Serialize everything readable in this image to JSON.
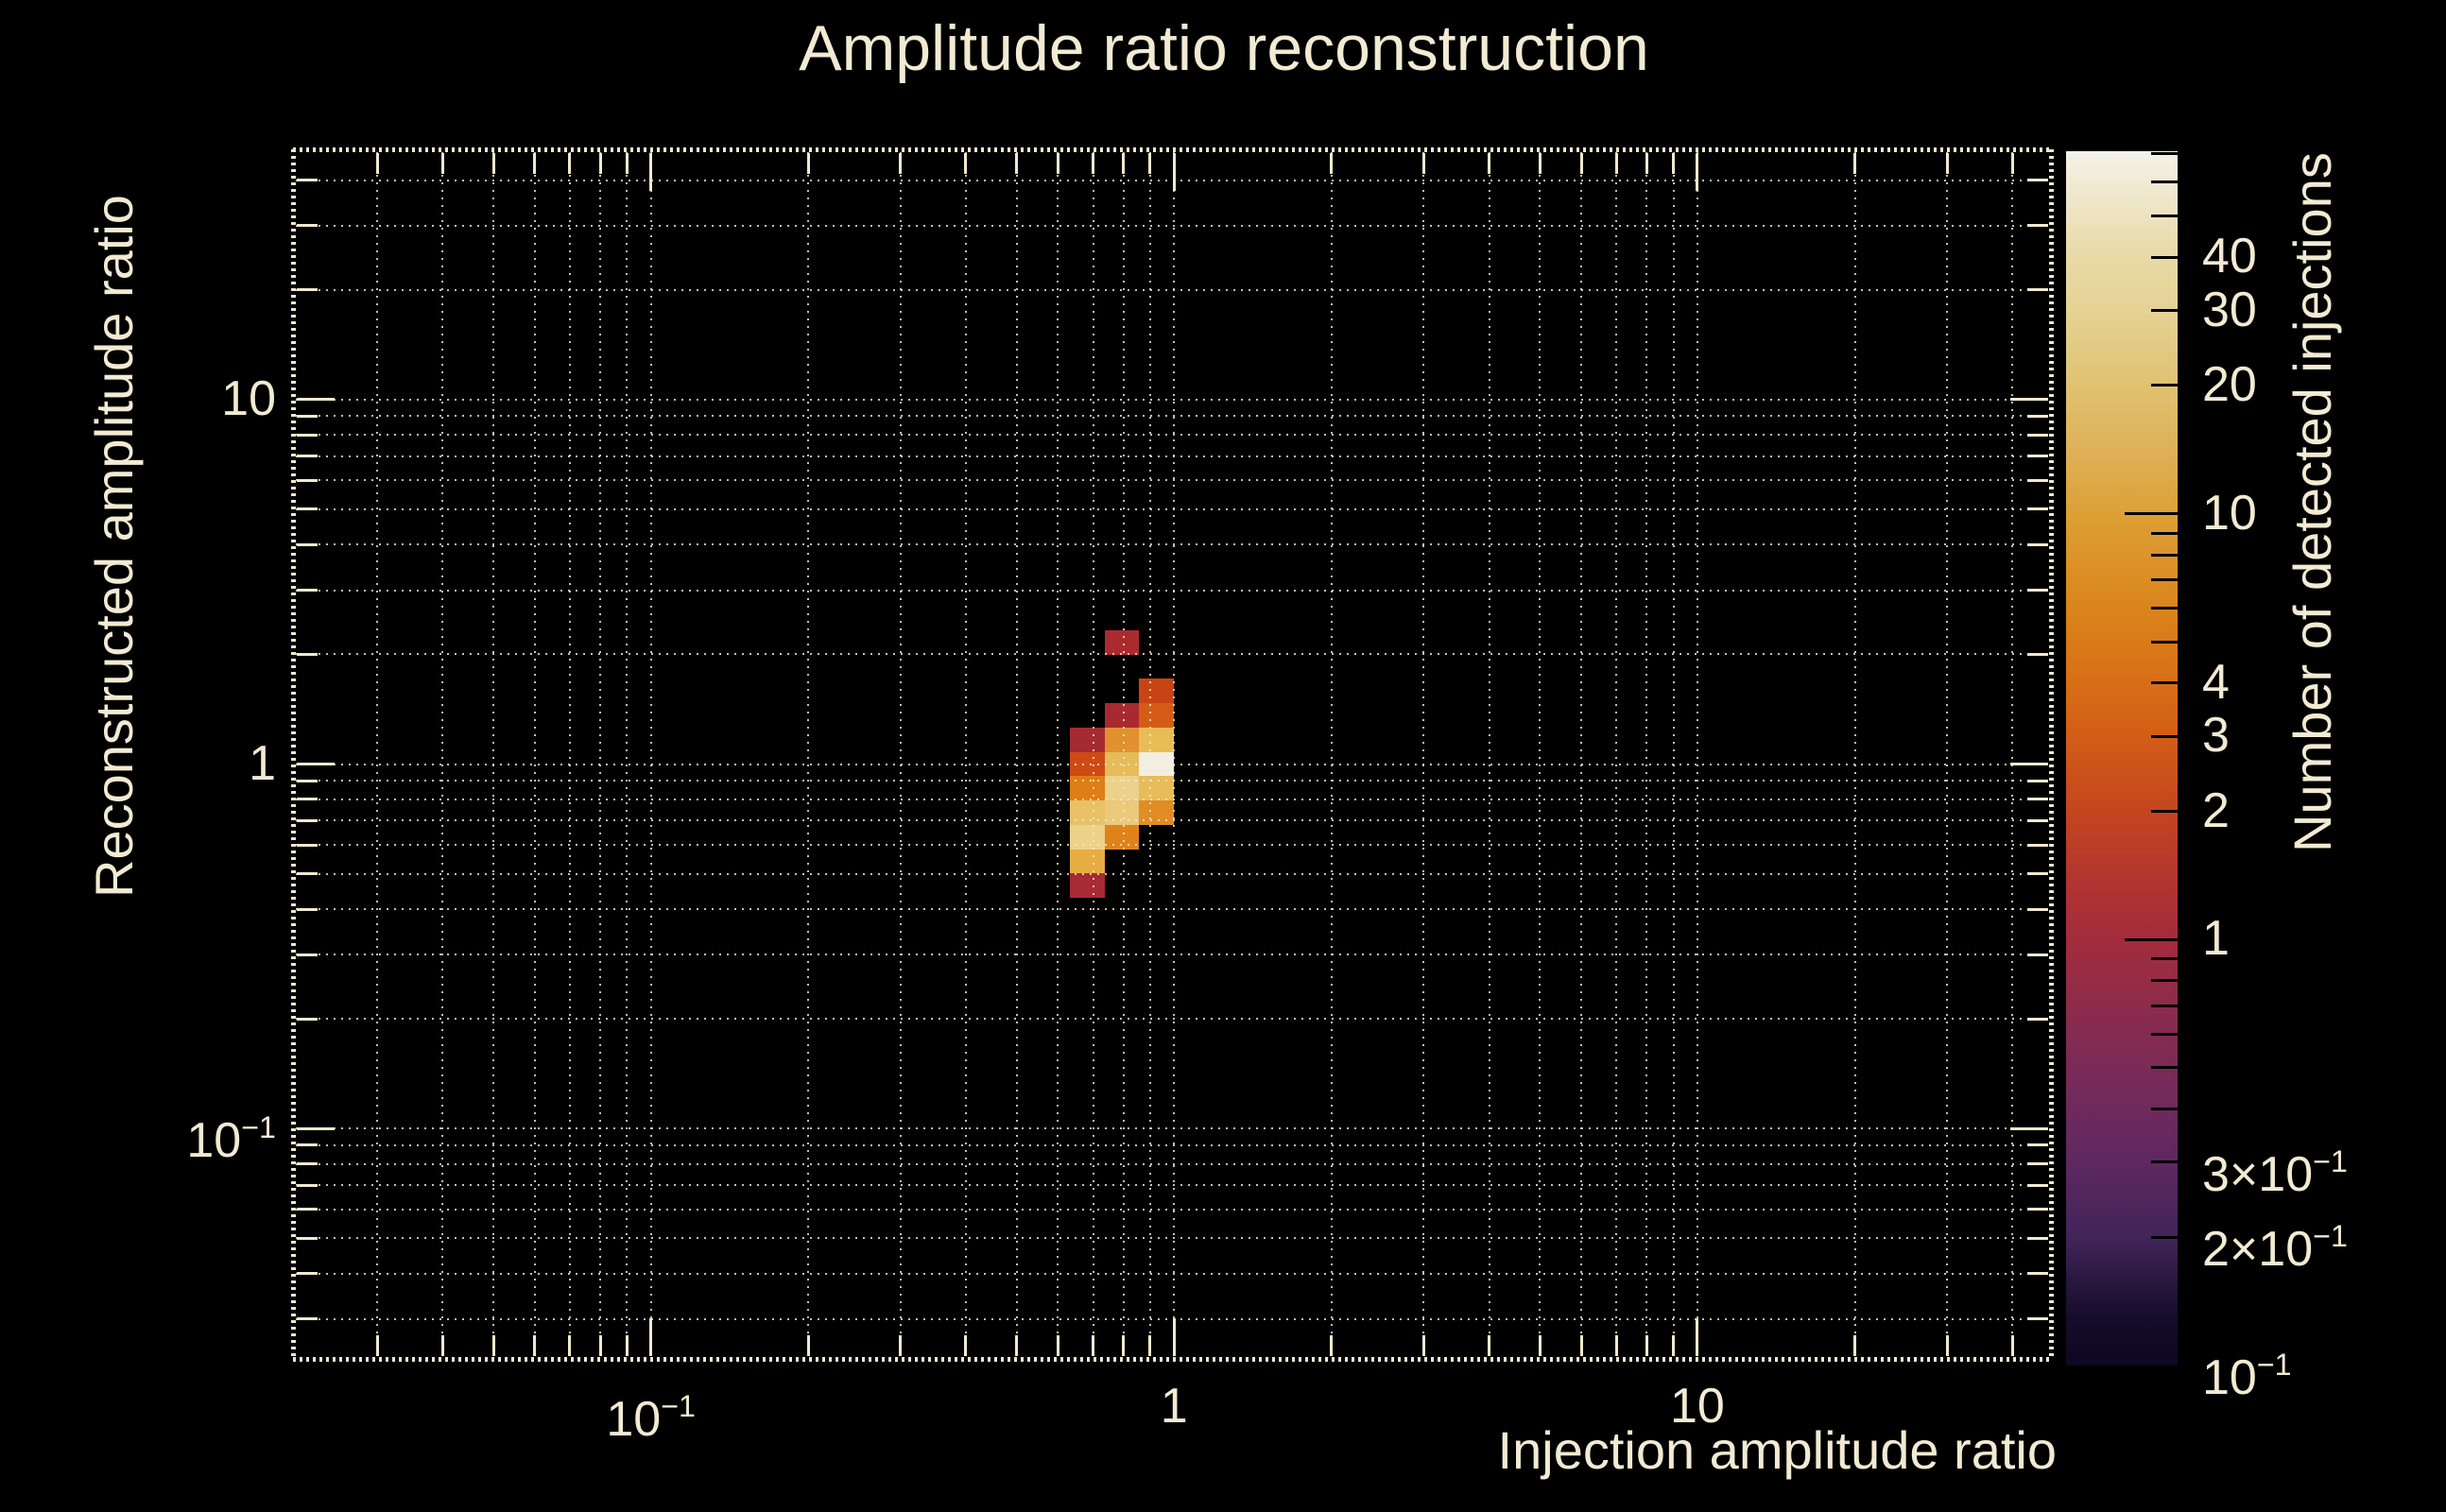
{
  "page": {
    "background": "#000000",
    "text_color": "#f2ead2",
    "frame_color": "#f2e8cd"
  },
  "title": "Amplitude ratio reconstruction",
  "axes": {
    "x": {
      "title": "Injection amplitude ratio"
    },
    "y": {
      "title": "Reconstructed amplitude ratio"
    },
    "z": {
      "title": "Number of detected injections"
    }
  },
  "chart_data": {
    "type": "heatmap",
    "title": "Amplitude ratio reconstruction",
    "xlabel": "Injection amplitude ratio",
    "ylabel": "Reconstructed amplitude ratio",
    "zlabel": "Number of detected injections",
    "x_scale": "log",
    "y_scale": "log",
    "z_scale": "log",
    "x_range": [
      0.0207,
      47.6
    ],
    "y_range": [
      0.0232,
      48.6
    ],
    "z_range": [
      0.1,
      71
    ],
    "grid": {
      "style": "dotted",
      "minor_lines": true,
      "colorbar_position": "right"
    },
    "x_ticks": [
      {
        "value": 0.1,
        "base": "10",
        "sup": "−1"
      },
      {
        "value": 1,
        "base": "1"
      },
      {
        "value": 10,
        "base": "10"
      }
    ],
    "y_ticks": [
      {
        "value": 10,
        "base": "10"
      },
      {
        "value": 1,
        "base": "1"
      },
      {
        "value": 0.1,
        "base": "10",
        "sup": "−1"
      }
    ],
    "z_ticks": [
      {
        "value": 40,
        "base": "40"
      },
      {
        "value": 30,
        "base": "30"
      },
      {
        "value": 20,
        "base": "20"
      },
      {
        "value": 10,
        "base": "10"
      },
      {
        "value": 4,
        "base": "4"
      },
      {
        "value": 3,
        "base": "3"
      },
      {
        "value": 2,
        "base": "2"
      },
      {
        "value": 1,
        "base": "1"
      },
      {
        "value": 0.3,
        "base": "3×10",
        "sup": "−1"
      },
      {
        "value": 0.2,
        "base": "2×10",
        "sup": "−1"
      },
      {
        "value": 0.1,
        "base": "10",
        "sup": "−1"
      }
    ],
    "z_minor_tick_values": [
      0.2,
      0.3,
      0.4,
      0.5,
      0.6,
      0.7,
      0.8,
      0.9,
      2,
      3,
      4,
      5,
      6,
      7,
      8,
      9,
      20,
      30,
      40,
      50,
      60,
      70
    ],
    "z_major_tick_values": [
      1,
      10
    ],
    "x_bin_edges": [
      0.631,
      0.736,
      0.858,
      1.0
    ],
    "y_bin_edges": [
      0.43,
      0.501,
      0.584,
      0.681,
      0.794,
      0.926,
      1.08,
      1.259,
      1.468,
      1.712,
      1.995,
      2.328
    ],
    "cells": [
      {
        "x": [
          0.736,
          0.858
        ],
        "y": [
          1.995,
          2.328
        ],
        "count": 1,
        "color": "#ab2a2e"
      },
      {
        "x": [
          0.858,
          1.0
        ],
        "y": [
          1.468,
          1.712
        ],
        "count": 2,
        "color": "#c84414"
      },
      {
        "x": [
          0.736,
          0.858
        ],
        "y": [
          1.259,
          1.468
        ],
        "count": 1,
        "color": "#a82a30"
      },
      {
        "x": [
          0.858,
          1.0
        ],
        "y": [
          1.259,
          1.468
        ],
        "count": 3,
        "color": "#d55c16"
      },
      {
        "x": [
          0.631,
          0.736
        ],
        "y": [
          1.08,
          1.259
        ],
        "count": 1,
        "color": "#a42b32"
      },
      {
        "x": [
          0.736,
          0.858
        ],
        "y": [
          1.08,
          1.259
        ],
        "count": 9,
        "color": "#e29130"
      },
      {
        "x": [
          0.858,
          1.0
        ],
        "y": [
          1.08,
          1.259
        ],
        "count": 17,
        "color": "#e9bd55"
      },
      {
        "x": [
          0.631,
          0.736
        ],
        "y": [
          0.926,
          1.08
        ],
        "count": 2,
        "color": "#ce4a15"
      },
      {
        "x": [
          0.736,
          0.858
        ],
        "y": [
          0.926,
          1.08
        ],
        "count": 16,
        "color": "#e6bc5a"
      },
      {
        "x": [
          0.858,
          1.0
        ],
        "y": [
          0.926,
          1.08
        ],
        "count": 71,
        "color": "#f2efe2"
      },
      {
        "x": [
          0.631,
          0.736
        ],
        "y": [
          0.794,
          0.926
        ],
        "count": 6,
        "color": "#df7d16"
      },
      {
        "x": [
          0.736,
          0.858
        ],
        "y": [
          0.794,
          0.926
        ],
        "count": 28,
        "color": "#ecd18c"
      },
      {
        "x": [
          0.858,
          1.0
        ],
        "y": [
          0.794,
          0.926
        ],
        "count": 17,
        "color": "#e7bc59"
      },
      {
        "x": [
          0.631,
          0.736
        ],
        "y": [
          0.681,
          0.794
        ],
        "count": 20,
        "color": "#e8c167"
      },
      {
        "x": [
          0.736,
          0.858
        ],
        "y": [
          0.681,
          0.794
        ],
        "count": 24,
        "color": "#eac97b"
      },
      {
        "x": [
          0.858,
          1.0
        ],
        "y": [
          0.681,
          0.794
        ],
        "count": 8,
        "color": "#e18c25"
      },
      {
        "x": [
          0.631,
          0.736
        ],
        "y": [
          0.584,
          0.681
        ],
        "count": 30,
        "color": "#ecd288"
      },
      {
        "x": [
          0.736,
          0.858
        ],
        "y": [
          0.584,
          0.681
        ],
        "count": 7,
        "color": "#e0821a"
      },
      {
        "x": [
          0.631,
          0.736
        ],
        "y": [
          0.501,
          0.584
        ],
        "count": 13,
        "color": "#e5ad42"
      },
      {
        "x": [
          0.631,
          0.736
        ],
        "y": [
          0.43,
          0.501
        ],
        "count": 1,
        "color": "#a62b34"
      }
    ],
    "max_cell": {
      "x": [
        0.858,
        1.0
      ],
      "y": [
        0.926,
        1.08
      ],
      "count": 71
    },
    "palette_stops": [
      {
        "pos": 0,
        "color": "#0d0721"
      },
      {
        "pos": 4,
        "color": "#150d2b"
      },
      {
        "pos": 10.6,
        "color": "#422459"
      },
      {
        "pos": 16.7,
        "color": "#5e2861"
      },
      {
        "pos": 22,
        "color": "#722a5c"
      },
      {
        "pos": 28,
        "color": "#872b50"
      },
      {
        "pos": 35.1,
        "color": "#a32c3c"
      },
      {
        "pos": 40,
        "color": "#b23531"
      },
      {
        "pos": 45.6,
        "color": "#c4451e"
      },
      {
        "pos": 51.8,
        "color": "#d25d16"
      },
      {
        "pos": 56.2,
        "color": "#d76e16"
      },
      {
        "pos": 62,
        "color": "#da831b"
      },
      {
        "pos": 70.1,
        "color": "#dda036"
      },
      {
        "pos": 75.5,
        "color": "#deb158"
      },
      {
        "pos": 80.7,
        "color": "#e0c271"
      },
      {
        "pos": 86.8,
        "color": "#e5d294"
      },
      {
        "pos": 91.2,
        "color": "#e8d9a6"
      },
      {
        "pos": 95.5,
        "color": "#eee5c6"
      },
      {
        "pos": 100,
        "color": "#f5f2ea"
      }
    ]
  }
}
